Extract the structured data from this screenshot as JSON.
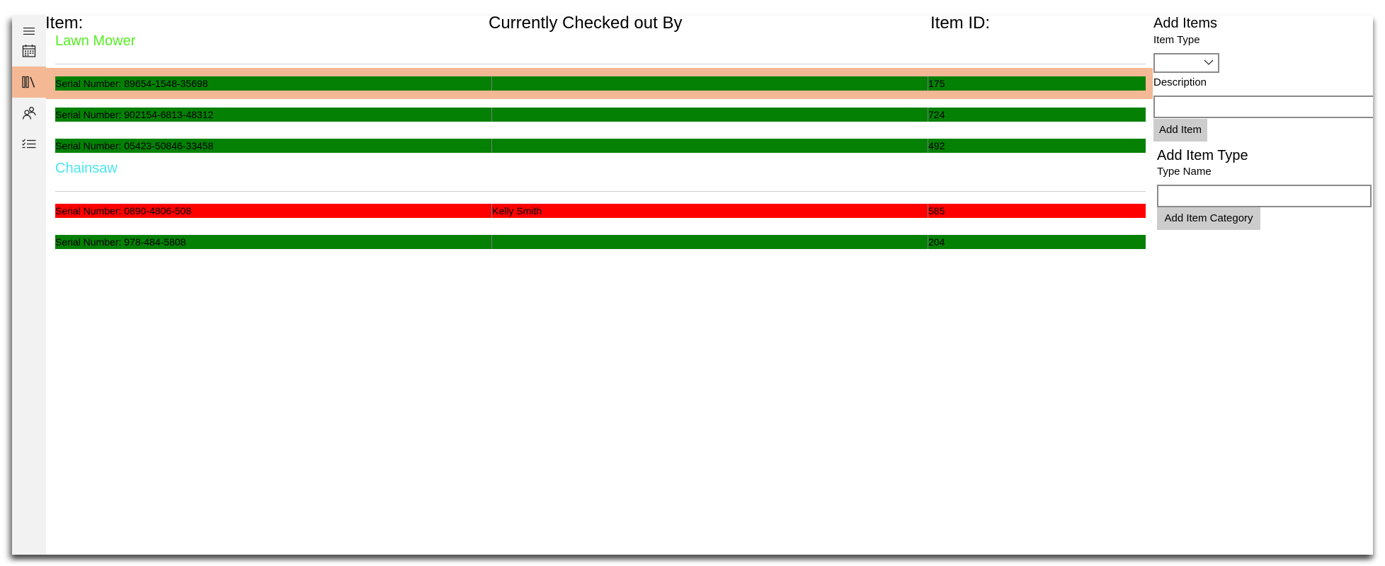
{
  "nav": {
    "items": [
      {
        "name": "hamburger-menu-icon"
      },
      {
        "name": "calendar-icon"
      },
      {
        "name": "library-icon"
      },
      {
        "name": "people-icon"
      },
      {
        "name": "checklist-icon"
      }
    ],
    "selected_color": "#f4b895"
  },
  "table": {
    "headers": {
      "item": "Item:",
      "checked_out_by": "Currently Checked out By",
      "item_id": "Item ID:"
    },
    "groups": [
      {
        "title": "Lawn Mower",
        "color": "#55ee22",
        "rows": [
          {
            "serial": "Serial Number: 89654-1548-35698",
            "checked_out_by": "",
            "id": "175",
            "status": "green",
            "selected": true
          },
          {
            "serial": "Serial Number: 902154-6813-48312",
            "checked_out_by": "",
            "id": "724",
            "status": "green"
          },
          {
            "serial": "Serial Number: 05423-50846-33458",
            "checked_out_by": "",
            "id": "492",
            "status": "green"
          }
        ]
      },
      {
        "title": "Chainsaw",
        "color": "#4ce5f0",
        "rows": [
          {
            "serial": "Serial Number: 0890-4806-508",
            "checked_out_by": "Kelly Smith",
            "id": "585",
            "status": "red"
          },
          {
            "serial": "Serial Number: 978-484-5808",
            "checked_out_by": "",
            "id": "204",
            "status": "green"
          }
        ]
      }
    ],
    "status_colors": {
      "green": "#048004",
      "red": "#ff0000"
    }
  },
  "add_items": {
    "title": "Add Items",
    "item_type_label": "Item Type",
    "item_type_value": "",
    "description_label": "Description",
    "description_value": "",
    "add_button": "Add Item"
  },
  "add_item_type": {
    "title": "Add Item Type",
    "type_name_label": "Type Name",
    "type_name_value": "",
    "add_button": "Add Item Category"
  }
}
